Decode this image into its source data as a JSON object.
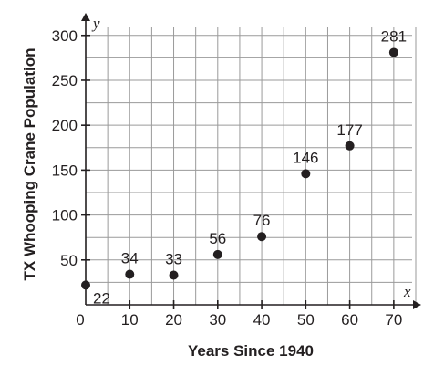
{
  "chart_data": {
    "type": "scatter",
    "xlabel": "Years Since 1940",
    "ylabel": "TX Whooping Crane Population",
    "x_axis_var": "x",
    "y_axis_var": "y",
    "xlim": [
      0,
      75
    ],
    "ylim": [
      0,
      315
    ],
    "grid": true,
    "x_ticks": [
      0,
      10,
      20,
      30,
      40,
      50,
      60,
      70
    ],
    "x_tick_labels": [
      "0",
      "10",
      "20",
      "30",
      "40",
      "50",
      "60",
      "70"
    ],
    "y_ticks": [
      50,
      100,
      150,
      200,
      250,
      300
    ],
    "y_tick_labels": [
      "50",
      "100",
      "150",
      "200",
      "250",
      "300"
    ],
    "points": [
      {
        "x": 0,
        "y": 22,
        "label": "22"
      },
      {
        "x": 10,
        "y": 34,
        "label": "34"
      },
      {
        "x": 20,
        "y": 33,
        "label": "33"
      },
      {
        "x": 30,
        "y": 56,
        "label": "56"
      },
      {
        "x": 40,
        "y": 76,
        "label": "76"
      },
      {
        "x": 50,
        "y": 146,
        "label": "146"
      },
      {
        "x": 60,
        "y": 177,
        "label": "177"
      },
      {
        "x": 70,
        "y": 281,
        "label": "281"
      }
    ],
    "point_color": "#231f20"
  }
}
